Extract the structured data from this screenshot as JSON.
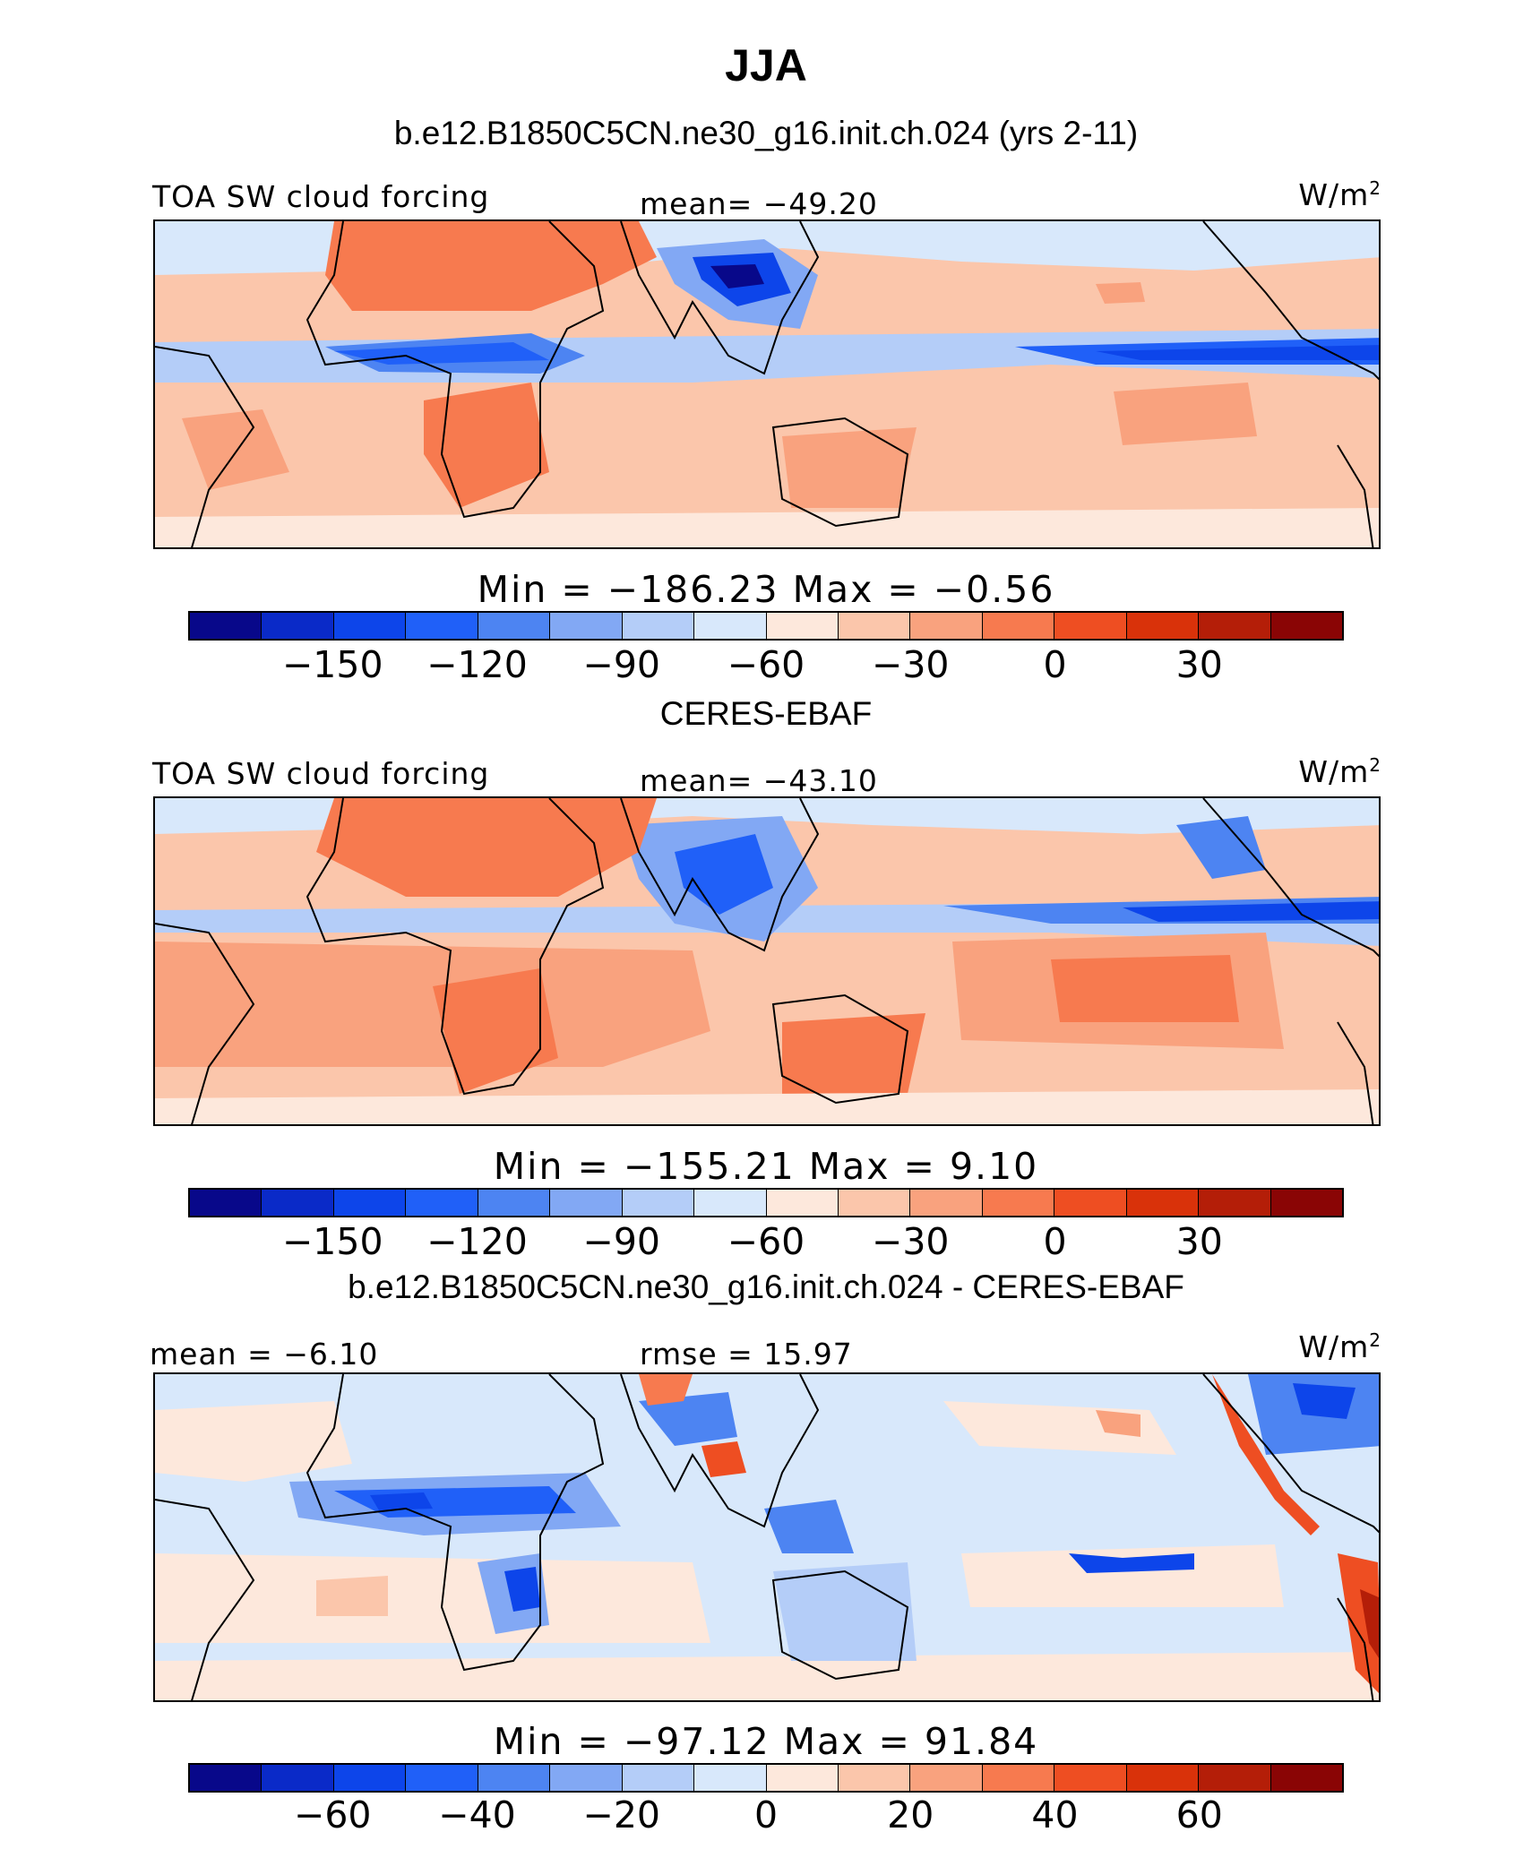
{
  "title": "JJA",
  "colors": {
    "scale": [
      "#08088a",
      "#0a2ac8",
      "#0d45ea",
      "#2060f8",
      "#4d84f2",
      "#82a8f4",
      "#b4cdf8",
      "#d8e8fb",
      "#fde8dc",
      "#fbc6ab",
      "#f9a27e",
      "#f77a4f",
      "#ee4e22",
      "#d9320a",
      "#b41e08",
      "#8a0505"
    ],
    "coastline": "#000000"
  },
  "panels": [
    {
      "case_title": "b.e12.B1850C5CN.ne30_g16.init.ch.024 (yrs 2-11)",
      "left_label": "TOA SW cloud forcing",
      "center_label": "mean=  −49.20",
      "units": "W/m",
      "units_sup": "2",
      "min_max": "Min  =  −186.23  Max  =   −0.56",
      "ticks": [
        "−150",
        "−120",
        "−90",
        "−60",
        "−30",
        "0",
        "30"
      ],
      "field": "model"
    },
    {
      "case_title": "CERES-EBAF",
      "left_label": "TOA SW cloud forcing",
      "center_label": "mean=  −43.10",
      "units": "W/m",
      "units_sup": "2",
      "min_max": "Min  =  −155.21  Max  =    9.10",
      "ticks": [
        "−150",
        "−120",
        "−90",
        "−60",
        "−30",
        "0",
        "30"
      ],
      "field": "obs"
    },
    {
      "case_title": "b.e12.B1850C5CN.ne30_g16.init.ch.024 - CERES-EBAF",
      "left_label": "mean  =   −6.10",
      "center_label": "rmse  =   15.97",
      "units": "W/m",
      "units_sup": "2",
      "min_max": "Min  =  −97.12  Max  =   91.84",
      "ticks": [
        "−60",
        "−40",
        "−20",
        "0",
        "20",
        "40",
        "60"
      ],
      "field": "diff"
    }
  ]
}
